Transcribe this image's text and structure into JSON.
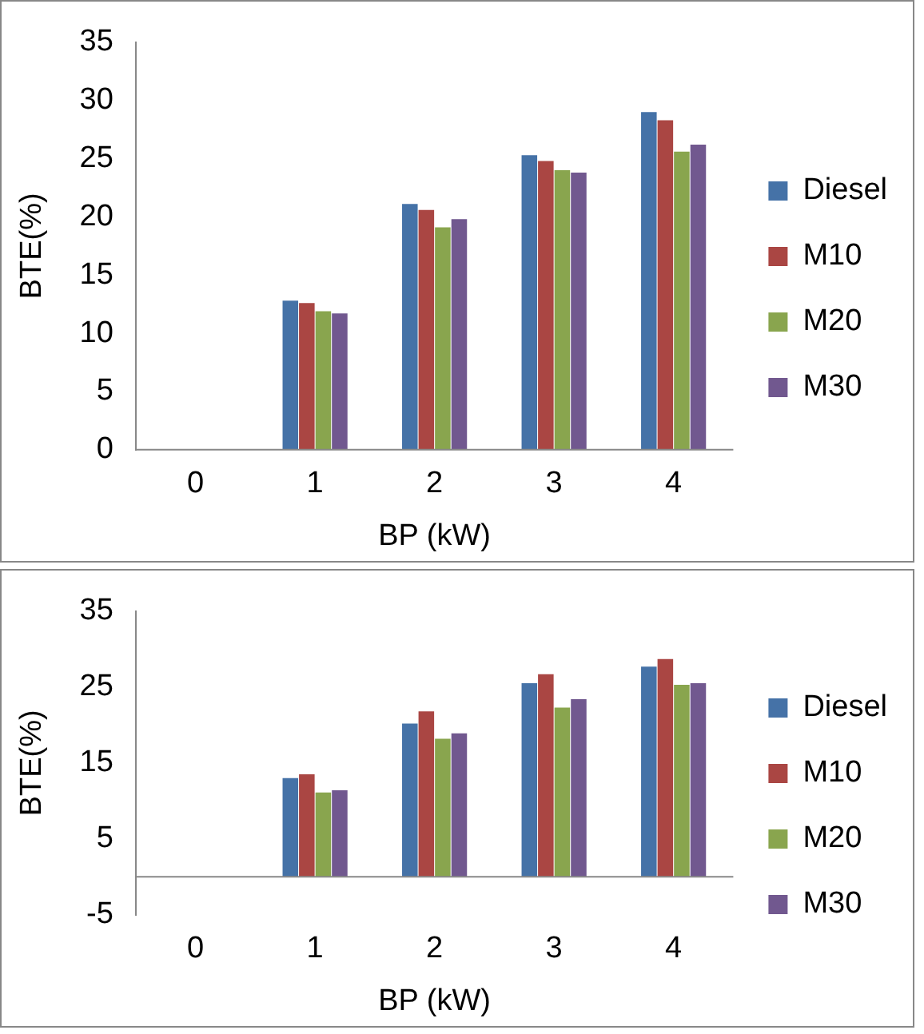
{
  "chart_data": [
    {
      "type": "bar",
      "xlabel": "BP (kW)",
      "ylabel": "BTE(%)",
      "categories": [
        "0",
        "1",
        "2",
        "3",
        "4"
      ],
      "series": [
        {
          "name": "Diesel",
          "color": "#4572a7",
          "values": [
            0,
            12.8,
            21.1,
            25.3,
            29.0
          ]
        },
        {
          "name": "M10",
          "color": "#aa4643",
          "values": [
            0,
            12.6,
            20.6,
            24.8,
            28.3
          ]
        },
        {
          "name": "M20",
          "color": "#89a54e",
          "values": [
            0,
            11.9,
            19.1,
            24.0,
            25.6
          ]
        },
        {
          "name": "M30",
          "color": "#71588f",
          "values": [
            0,
            11.7,
            19.8,
            23.8,
            26.2
          ]
        }
      ],
      "ylim": [
        0,
        35
      ],
      "yticks": [
        0,
        5,
        10,
        15,
        20,
        25,
        30,
        35
      ],
      "grid": false,
      "legend": "right"
    },
    {
      "type": "bar",
      "xlabel": "BP (kW)",
      "ylabel": "BTE(%)",
      "categories": [
        "0",
        "1",
        "2",
        "3",
        "4"
      ],
      "series": [
        {
          "name": "Diesel",
          "color": "#4572a7",
          "values": [
            0,
            13.0,
            20.2,
            25.5,
            27.7
          ]
        },
        {
          "name": "M10",
          "color": "#aa4643",
          "values": [
            0,
            13.5,
            21.8,
            26.7,
            28.7
          ]
        },
        {
          "name": "M20",
          "color": "#89a54e",
          "values": [
            0,
            11.1,
            18.2,
            22.3,
            25.3
          ]
        },
        {
          "name": "M30",
          "color": "#71588f",
          "values": [
            0,
            11.4,
            18.9,
            23.4,
            25.5
          ]
        }
      ],
      "ylim": [
        -5,
        35
      ],
      "yticks": [
        -5,
        5,
        15,
        25,
        35
      ],
      "grid": false,
      "legend": "right"
    }
  ]
}
